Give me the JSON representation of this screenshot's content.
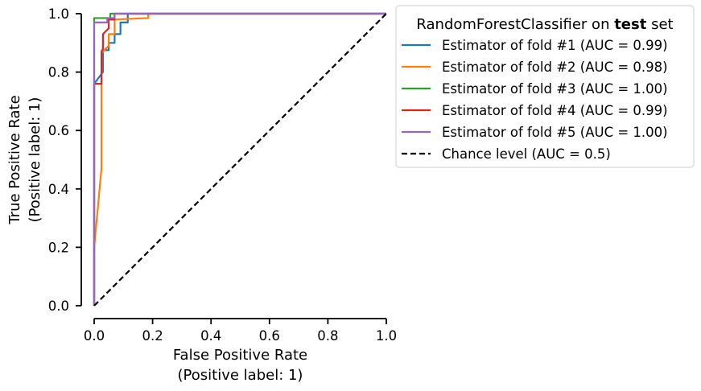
{
  "chart_data": {
    "type": "line",
    "xlabel": "False Positive Rate",
    "xlabel_sub": "(Positive label: 1)",
    "ylabel": "True Positive Rate",
    "ylabel_sub": "(Positive label: 1)",
    "xlim": [
      0,
      1
    ],
    "ylim": [
      0,
      1
    ],
    "xticks": [
      "0.0",
      "0.2",
      "0.4",
      "0.6",
      "0.8",
      "1.0"
    ],
    "yticks": [
      "0.0",
      "0.2",
      "0.4",
      "0.6",
      "0.8",
      "1.0"
    ],
    "grid": false,
    "legend": {
      "placement": "outside-right",
      "title_prefix": "RandomForestClassifier on ",
      "title_bold": "test",
      "title_suffix": " set"
    },
    "series": [
      {
        "name": "Estimator of fold #1 (AUC = 0.99)",
        "color": "#1f77b4",
        "dash": "solid",
        "points": [
          [
            0,
            0
          ],
          [
            0,
            0.76
          ],
          [
            0.03,
            0.8
          ],
          [
            0.03,
            0.875
          ],
          [
            0.05,
            0.875
          ],
          [
            0.05,
            0.9
          ],
          [
            0.07,
            0.9
          ],
          [
            0.07,
            0.93
          ],
          [
            0.09,
            0.93
          ],
          [
            0.09,
            0.97
          ],
          [
            0.115,
            0.97
          ],
          [
            0.115,
            1.0
          ],
          [
            1.0,
            1.0
          ]
        ]
      },
      {
        "name": "Estimator of fold #2 (AUC = 0.98)",
        "color": "#ff7f0e",
        "dash": "solid",
        "points": [
          [
            0,
            0
          ],
          [
            0.0,
            0.2
          ],
          [
            0.025,
            0.47
          ],
          [
            0.025,
            0.865
          ],
          [
            0.05,
            0.89
          ],
          [
            0.05,
            0.93
          ],
          [
            0.07,
            0.93
          ],
          [
            0.07,
            0.98
          ],
          [
            0.185,
            0.985
          ],
          [
            0.185,
            1.0
          ],
          [
            1.0,
            1.0
          ]
        ]
      },
      {
        "name": "Estimator of fold #3 (AUC = 1.00)",
        "color": "#2ca02c",
        "dash": "solid",
        "points": [
          [
            0,
            0
          ],
          [
            0,
            0.985
          ],
          [
            0.055,
            0.985
          ],
          [
            0.055,
            1.0
          ],
          [
            1.0,
            1.0
          ]
        ]
      },
      {
        "name": "Estimator of fold #4 (AUC = 0.99)",
        "color": "#d62728",
        "dash": "solid",
        "points": [
          [
            0,
            0
          ],
          [
            0,
            0.76
          ],
          [
            0.025,
            0.76
          ],
          [
            0.025,
            0.87
          ],
          [
            0.03,
            0.88
          ],
          [
            0.03,
            0.93
          ],
          [
            0.05,
            0.95
          ],
          [
            0.05,
            0.98
          ],
          [
            0.07,
            0.98
          ],
          [
            0.07,
            1.0
          ],
          [
            1.0,
            1.0
          ]
        ]
      },
      {
        "name": "Estimator of fold #5 (AUC = 1.00)",
        "color": "#9467bd",
        "dash": "solid",
        "points": [
          [
            0,
            0
          ],
          [
            0,
            0.97
          ],
          [
            0.045,
            0.97
          ],
          [
            0.045,
            0.985
          ],
          [
            0.07,
            0.985
          ],
          [
            0.07,
            1.0
          ],
          [
            1.0,
            1.0
          ]
        ]
      },
      {
        "name": "Chance level (AUC = 0.5)",
        "color": "#000000",
        "dash": "dashed",
        "points": [
          [
            0,
            0
          ],
          [
            1,
            1
          ]
        ]
      }
    ]
  }
}
